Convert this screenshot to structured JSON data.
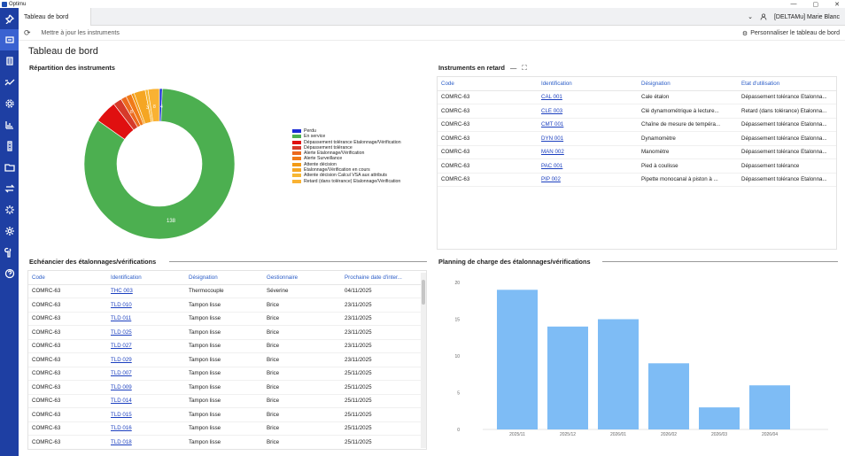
{
  "window": {
    "title": "Optimu",
    "controls": [
      "—",
      "▢",
      "✕"
    ]
  },
  "rail": {
    "items": [
      {
        "icon": "pin-icon"
      },
      {
        "icon": "dashboard-icon",
        "active": true
      },
      {
        "icon": "list-icon"
      },
      {
        "icon": "trend-icon"
      },
      {
        "icon": "gear-icon"
      },
      {
        "icon": "bar-chart-icon"
      },
      {
        "icon": "ruler-icon"
      },
      {
        "icon": "folder-icon"
      },
      {
        "icon": "transfer-icon"
      },
      {
        "icon": "spark-icon"
      },
      {
        "icon": "settings-icon"
      },
      {
        "icon": "tool-icon"
      },
      {
        "icon": "help-icon"
      }
    ]
  },
  "tabs": {
    "active_label": "Tableau de bord",
    "user": "[DELTAMu] Marie Blanc",
    "chevron": "⌄"
  },
  "toolbar": {
    "refresh_label": "Mettre à jour les instruments",
    "customize_label": "Personnaliser le tableau de bord"
  },
  "page": {
    "title": "Tableau de bord"
  },
  "donut": {
    "title": "Répartition des instruments",
    "center_label": "138",
    "segment_labels": [
      "8",
      "3",
      "8",
      "4"
    ],
    "chart_data": {
      "type": "pie",
      "legend_position": "right",
      "labels": [
        "Perdu",
        "En service",
        "Dépassement tolérance Etalonnage/Vérification",
        "Dépassement tolérance",
        "Alerte Etalonnage/Vérification",
        "Alerte Surveillance",
        "Attente décision",
        "Etalonnage/Vérification en cours",
        "Attente décision Calcul VSA aux attributs",
        "Retard (dans tolérance) Etalonnage/Vérification"
      ],
      "values": [
        1,
        138,
        8,
        3,
        2,
        2,
        1,
        4,
        1,
        4
      ],
      "colors": [
        "#1a2bd6",
        "#4caf50",
        "#e01010",
        "#d63a2a",
        "#ec6a1f",
        "#f07a18",
        "#f39a15",
        "#f5a623",
        "#f7b733",
        "#f9b233"
      ]
    }
  },
  "late": {
    "title": "Instruments en retard",
    "columns": [
      "Code",
      "Identification",
      "Désignation",
      "Etat d'utilisation"
    ],
    "rows": [
      [
        "COMRC-63",
        "CAL 001",
        "Cale étalon",
        "Dépassement tolérance Etalonna..."
      ],
      [
        "COMRC-63",
        "CLE 003",
        "Clé dynamométrique à lecture...",
        "Retard (dans tolérance) Etalonna..."
      ],
      [
        "COMRC-63",
        "CMT 001",
        "Chaîne de mesure de tempéra...",
        "Dépassement tolérance Etalonna..."
      ],
      [
        "COMRC-63",
        "DYN 001",
        "Dynamomètre",
        "Dépassement tolérance Etalonna..."
      ],
      [
        "COMRC-63",
        "MAN 002",
        "Manomètre",
        "Dépassement tolérance Etalonna..."
      ],
      [
        "COMRC-63",
        "PAC 001",
        "Pied à coulisse",
        "Dépassement tolérance"
      ],
      [
        "COMRC-63",
        "PIP 002",
        "Pipette monocanal à piston à ...",
        "Dépassement tolérance Etalonna..."
      ]
    ]
  },
  "schedule": {
    "title": "Echéancier des étalonnages/vérifications",
    "columns": [
      "Code",
      "Identification",
      "Désignation",
      "Gestionnaire",
      "Prochaine date d'inter..."
    ],
    "rows": [
      [
        "COMRC-63",
        "THC 003",
        "Thermocouple",
        "Séverine",
        "04/11/2025"
      ],
      [
        "COMRC-63",
        "TLD 010",
        "Tampon lisse",
        "Brice",
        "23/11/2025"
      ],
      [
        "COMRC-63",
        "TLD 011",
        "Tampon lisse",
        "Brice",
        "23/11/2025"
      ],
      [
        "COMRC-63",
        "TLD 025",
        "Tampon lisse",
        "Brice",
        "23/11/2025"
      ],
      [
        "COMRC-63",
        "TLD 027",
        "Tampon lisse",
        "Brice",
        "23/11/2025"
      ],
      [
        "COMRC-63",
        "TLD 029",
        "Tampon lisse",
        "Brice",
        "23/11/2025"
      ],
      [
        "COMRC-63",
        "TLD 007",
        "Tampon lisse",
        "Brice",
        "25/11/2025"
      ],
      [
        "COMRC-63",
        "TLD 009",
        "Tampon lisse",
        "Brice",
        "25/11/2025"
      ],
      [
        "COMRC-63",
        "TLD 014",
        "Tampon lisse",
        "Brice",
        "25/11/2025"
      ],
      [
        "COMRC-63",
        "TLD 015",
        "Tampon lisse",
        "Brice",
        "25/11/2025"
      ],
      [
        "COMRC-63",
        "TLD 016",
        "Tampon lisse",
        "Brice",
        "25/11/2025"
      ],
      [
        "COMRC-63",
        "TLD 018",
        "Tampon lisse",
        "Brice",
        "25/11/2025"
      ]
    ]
  },
  "planning": {
    "title": "Planning de charge des étalonnages/vérifications",
    "chart_data": {
      "type": "bar",
      "categories": [
        "2025/11",
        "2025/12",
        "2026/01",
        "2026/02",
        "2026/03",
        "2026/04"
      ],
      "values": [
        19,
        14,
        15,
        9,
        3,
        6
      ],
      "ylim": [
        0,
        20
      ],
      "yticks": [
        0,
        5,
        10,
        15,
        20
      ],
      "grid": false,
      "color": "#7ebcf5"
    }
  }
}
